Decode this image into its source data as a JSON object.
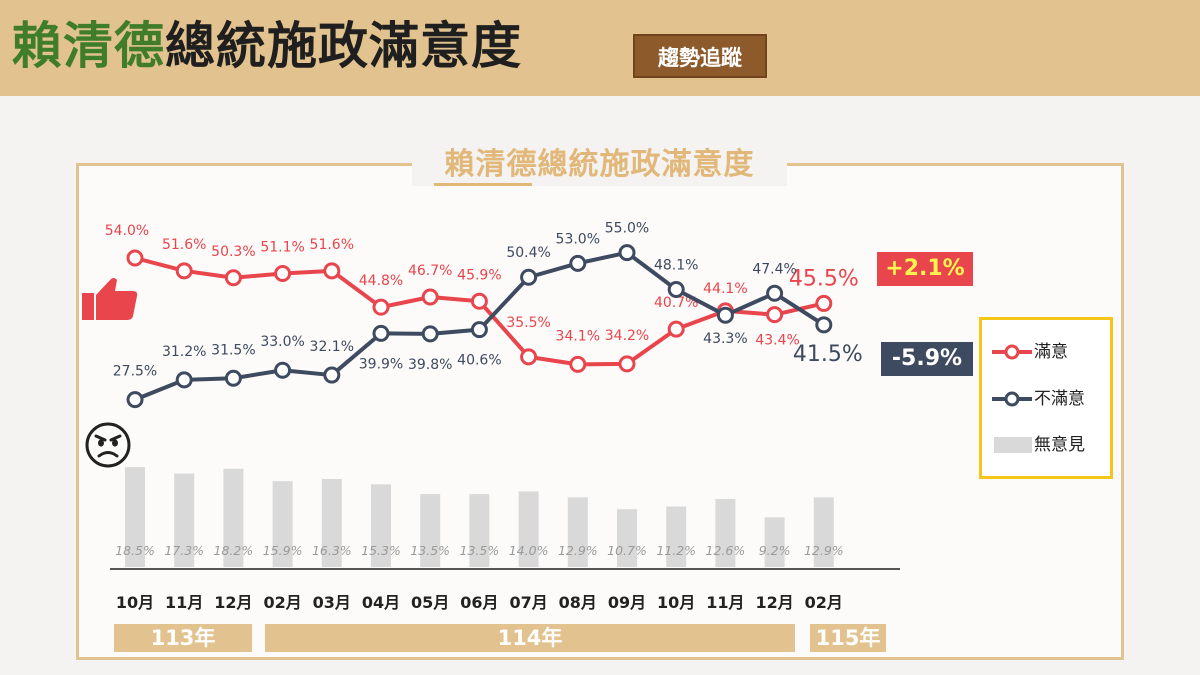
{
  "header": {
    "title_part1": "賴清德",
    "title_part2": "總統施政滿意度",
    "tag": "趨勢追蹤"
  },
  "panel": {
    "title": "賴清德總統施政滿意度"
  },
  "colors": {
    "satisfied": "#e8454d",
    "dissatisfied": "#3e4a5f",
    "no_opinion": "#d9d9d9",
    "accent": "#e2c28e"
  },
  "chart_data": {
    "type": "line",
    "categories": [
      "10月",
      "11月",
      "12月",
      "02月",
      "03月",
      "04月",
      "05月",
      "06月",
      "07月",
      "08月",
      "09月",
      "10月",
      "11月",
      "12月",
      "02月"
    ],
    "series": [
      {
        "name": "滿意",
        "color": "#e8454d",
        "values": [
          54.0,
          51.6,
          50.3,
          51.1,
          51.6,
          44.8,
          46.7,
          45.9,
          35.5,
          34.1,
          34.2,
          40.7,
          44.1,
          43.4,
          45.5
        ],
        "labels": [
          "54.0%",
          "51.6%",
          "50.3%",
          "51.1%",
          "51.6%",
          "44.8%",
          "46.7%",
          "45.9%",
          "35.5%",
          "34.1%",
          "34.2%",
          "40.7%",
          "44.1%",
          "43.4%",
          "45.5%"
        ]
      },
      {
        "name": "不滿意",
        "color": "#3e4a5f",
        "values": [
          27.5,
          31.2,
          31.5,
          33.0,
          32.1,
          39.9,
          39.8,
          40.6,
          50.4,
          53.0,
          55.0,
          48.1,
          43.3,
          47.4,
          41.5
        ],
        "labels": [
          "27.5%",
          "31.2%",
          "31.5%",
          "33.0%",
          "32.1%",
          "39.9%",
          "39.8%",
          "40.6%",
          "50.4%",
          "53.0%",
          "55.0%",
          "48.1%",
          "43.3%",
          "47.4%",
          "41.5%"
        ]
      },
      {
        "name": "無意見",
        "type": "bar",
        "color": "#d9d9d9",
        "values": [
          18.5,
          17.3,
          18.2,
          15.9,
          16.3,
          15.3,
          13.5,
          13.5,
          14.0,
          12.9,
          10.7,
          11.2,
          12.6,
          9.2,
          12.9
        ],
        "labels": [
          "18.5%",
          "17.3%",
          "18.2%",
          "15.9%",
          "16.3%",
          "15.3%",
          "13.5%",
          "13.5%",
          "14.0%",
          "12.9%",
          "10.7%",
          "11.2%",
          "12.6%",
          "9.2%",
          "12.9%"
        ]
      }
    ],
    "years": [
      {
        "label": "113年",
        "categories": [
          "10月",
          "11月",
          "12月"
        ]
      },
      {
        "label": "114年",
        "categories": [
          "02月",
          "03月",
          "04月",
          "05月",
          "06月",
          "07月",
          "08月",
          "09月",
          "10月",
          "11月",
          "12月"
        ]
      },
      {
        "label": "115年",
        "categories": [
          "02月"
        ]
      }
    ],
    "legend": {
      "position": "right",
      "entries": [
        "滿意",
        "不滿意",
        "無意見"
      ]
    },
    "changes": {
      "satisfied": "+2.1%",
      "dissatisfied": "-5.9%"
    }
  }
}
